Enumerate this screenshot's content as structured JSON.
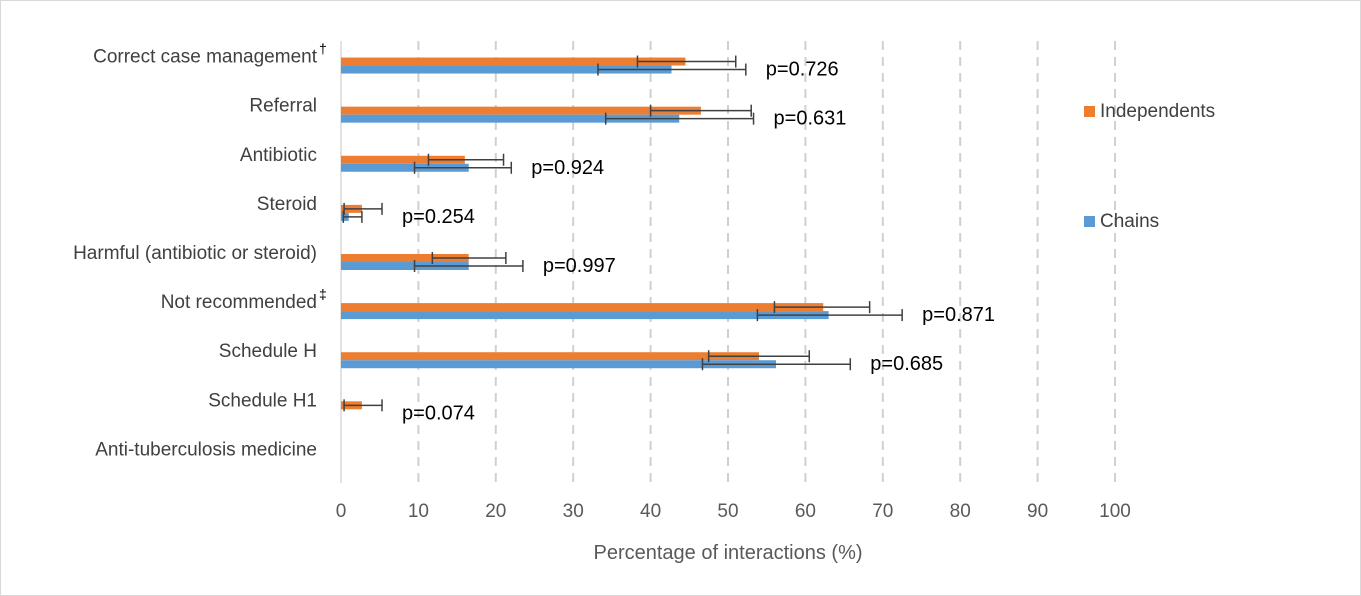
{
  "chart_data": {
    "type": "bar",
    "orientation": "horizontal",
    "categories": [
      "Correct case management",
      "Referral",
      "Antibiotic",
      "Steroid",
      "Harmful (antibiotic or steroid)",
      "Not recommended",
      "Schedule H",
      "Schedule H1",
      "Anti-tuberculosis medicine"
    ],
    "category_marks": [
      "†",
      "",
      "",
      "",
      "",
      "‡",
      "",
      "",
      ""
    ],
    "series": [
      {
        "name": "Independents",
        "color": "#ED7D31",
        "values": [
          44.5,
          46.5,
          16,
          2.7,
          16.5,
          62.3,
          54,
          2.7,
          0
        ],
        "error_low": [
          38.3,
          40,
          11.3,
          0.4,
          11.8,
          56,
          47.5,
          0.4,
          0
        ],
        "error_high": [
          51,
          53,
          21,
          5.3,
          21.3,
          68.3,
          60.5,
          5.3,
          0
        ]
      },
      {
        "name": "Chains",
        "color": "#5B9BD5",
        "values": [
          42.7,
          43.7,
          16.5,
          1,
          16.5,
          63,
          56.2,
          0,
          0
        ],
        "error_low": [
          33.2,
          34.2,
          9.5,
          0.3,
          9.5,
          53.8,
          46.7,
          0,
          0
        ],
        "error_high": [
          52.3,
          53.3,
          22,
          2.7,
          23.5,
          72.5,
          65.8,
          0,
          0
        ]
      }
    ],
    "pvalues": [
      "p=0.726",
      "p=0.631",
      "p=0.924",
      "p=0.254",
      "p=0.997",
      "p=0.871",
      "p=0.685",
      "p=0.074",
      ""
    ],
    "xticks": [
      "0",
      "10",
      "20",
      "30",
      "40",
      "50",
      "60",
      "70",
      "80",
      "90",
      "100"
    ],
    "xlabel": "Percentage of interactions (%)",
    "ylabel": "",
    "title": "",
    "xlim": [
      0,
      100
    ],
    "grid": "vertical dashed",
    "legend_position": "right"
  }
}
